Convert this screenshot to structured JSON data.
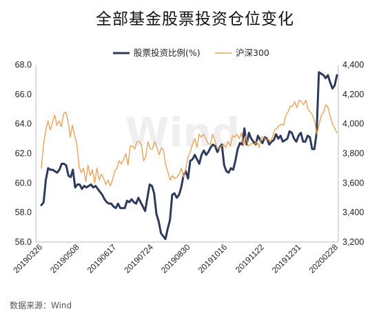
{
  "title": "全部基金股票投资仓位变化",
  "source": "数据来源：Wind",
  "watermark": "Wind",
  "chart_data": {
    "type": "line",
    "title": "全部基金股票投资仓位变化",
    "grid": false,
    "legend_position": "top-center",
    "x_ticks": [
      "20190326",
      "20190508",
      "20190617",
      "20190724",
      "20190830",
      "20191016",
      "20191122",
      "20191231",
      "20200228"
    ],
    "y_left": {
      "ticks": [
        "56.0",
        "58.0",
        "60.0",
        "62.0",
        "64.0",
        "66.0",
        "68.0"
      ],
      "ylim": [
        56,
        68
      ]
    },
    "y_right": {
      "ticks": [
        "3,200",
        "3,400",
        "3,600",
        "3,800",
        "4,000",
        "4,200",
        "4,400"
      ],
      "ylim": [
        3200,
        4400
      ]
    },
    "series": [
      {
        "name": "股票投资比例(%)",
        "axis": "left",
        "color": "#2e3a5c",
        "values": [
          58.5,
          58.7,
          60.2,
          61.0,
          60.9,
          60.9,
          60.8,
          60.7,
          60.9,
          61.3,
          61.3,
          61.2,
          60.5,
          60.4,
          60.9,
          59.7,
          59.9,
          59.9,
          59.6,
          59.8,
          59.7,
          59.8,
          59.9,
          59.7,
          59.8,
          59.6,
          59.4,
          59.2,
          58.9,
          58.7,
          58.6,
          58.6,
          58.4,
          58.3,
          58.6,
          58.3,
          58.3,
          58.3,
          58.8,
          58.7,
          58.9,
          58.7,
          58.6,
          59.0,
          58.7,
          58.4,
          58.1,
          59.0,
          59.9,
          59.8,
          59.3,
          57.9,
          57.4,
          56.6,
          56.4,
          56.2,
          56.9,
          57.5,
          59.2,
          59.3,
          59.0,
          59.2,
          59.7,
          60.5,
          60.8,
          60.3,
          61.5,
          61.6,
          61.9,
          61.6,
          61.3,
          61.9,
          62.2,
          61.9,
          62.1,
          62.4,
          62.6,
          62.5,
          62.1,
          62.4,
          62.6,
          61.2,
          60.8,
          60.7,
          61.0,
          60.9,
          61.5,
          62.3,
          62.7,
          62.6,
          63.7,
          62.6,
          63.4,
          63.0,
          62.8,
          62.6,
          63.2,
          62.9,
          62.7,
          63.1,
          63.0,
          62.6,
          62.8,
          62.9,
          63.3,
          63.0,
          63.2,
          62.8,
          62.9,
          63.0,
          63.5,
          63.4,
          63.0,
          62.8,
          63.2,
          63.4,
          62.8,
          62.8,
          63.2,
          63.1,
          62.3,
          62.3,
          63.4,
          67.5,
          67.4,
          67.3,
          67.1,
          67.3,
          66.8,
          66.4,
          66.6,
          67.3
        ]
      },
      {
        "name": "沪深300",
        "axis": "right",
        "color": "#e8a35a",
        "values": [
          3700,
          3860,
          3960,
          4020,
          3960,
          4010,
          4060,
          3990,
          4020,
          3980,
          4070,
          4080,
          4020,
          3910,
          3990,
          3920,
          3860,
          3710,
          3670,
          3700,
          3610,
          3720,
          3650,
          3690,
          3600,
          3700,
          3620,
          3660,
          3630,
          3590,
          3620,
          3580,
          3620,
          3680,
          3700,
          3750,
          3730,
          3760,
          3800,
          3720,
          3850,
          3850,
          3830,
          3880,
          3880,
          3860,
          3750,
          3780,
          3880,
          3830,
          3830,
          3880,
          3840,
          3790,
          3840,
          3820,
          3720,
          3670,
          3620,
          3650,
          3630,
          3640,
          3660,
          3700,
          3640,
          3700,
          3780,
          3810,
          3860,
          3900,
          3840,
          3930,
          3910,
          3930,
          3900,
          3870,
          3860,
          3930,
          3890,
          3840,
          3830,
          3850,
          3860,
          3840,
          3880,
          3850,
          3920,
          3910,
          3930,
          3900,
          3940,
          3850,
          3920,
          3850,
          3860,
          3870,
          3860,
          3880,
          3840,
          3910,
          3910,
          3890,
          3900,
          3880,
          3910,
          3960,
          3970,
          3990,
          4000,
          3990,
          4060,
          4080,
          4120,
          4120,
          4150,
          4110,
          4160,
          4150,
          4130,
          4160,
          4100,
          4080,
          4060,
          4010,
          3930,
          4000,
          4060,
          4080,
          4130,
          4110,
          4050,
          4000,
          3970,
          3940
        ]
      }
    ]
  }
}
